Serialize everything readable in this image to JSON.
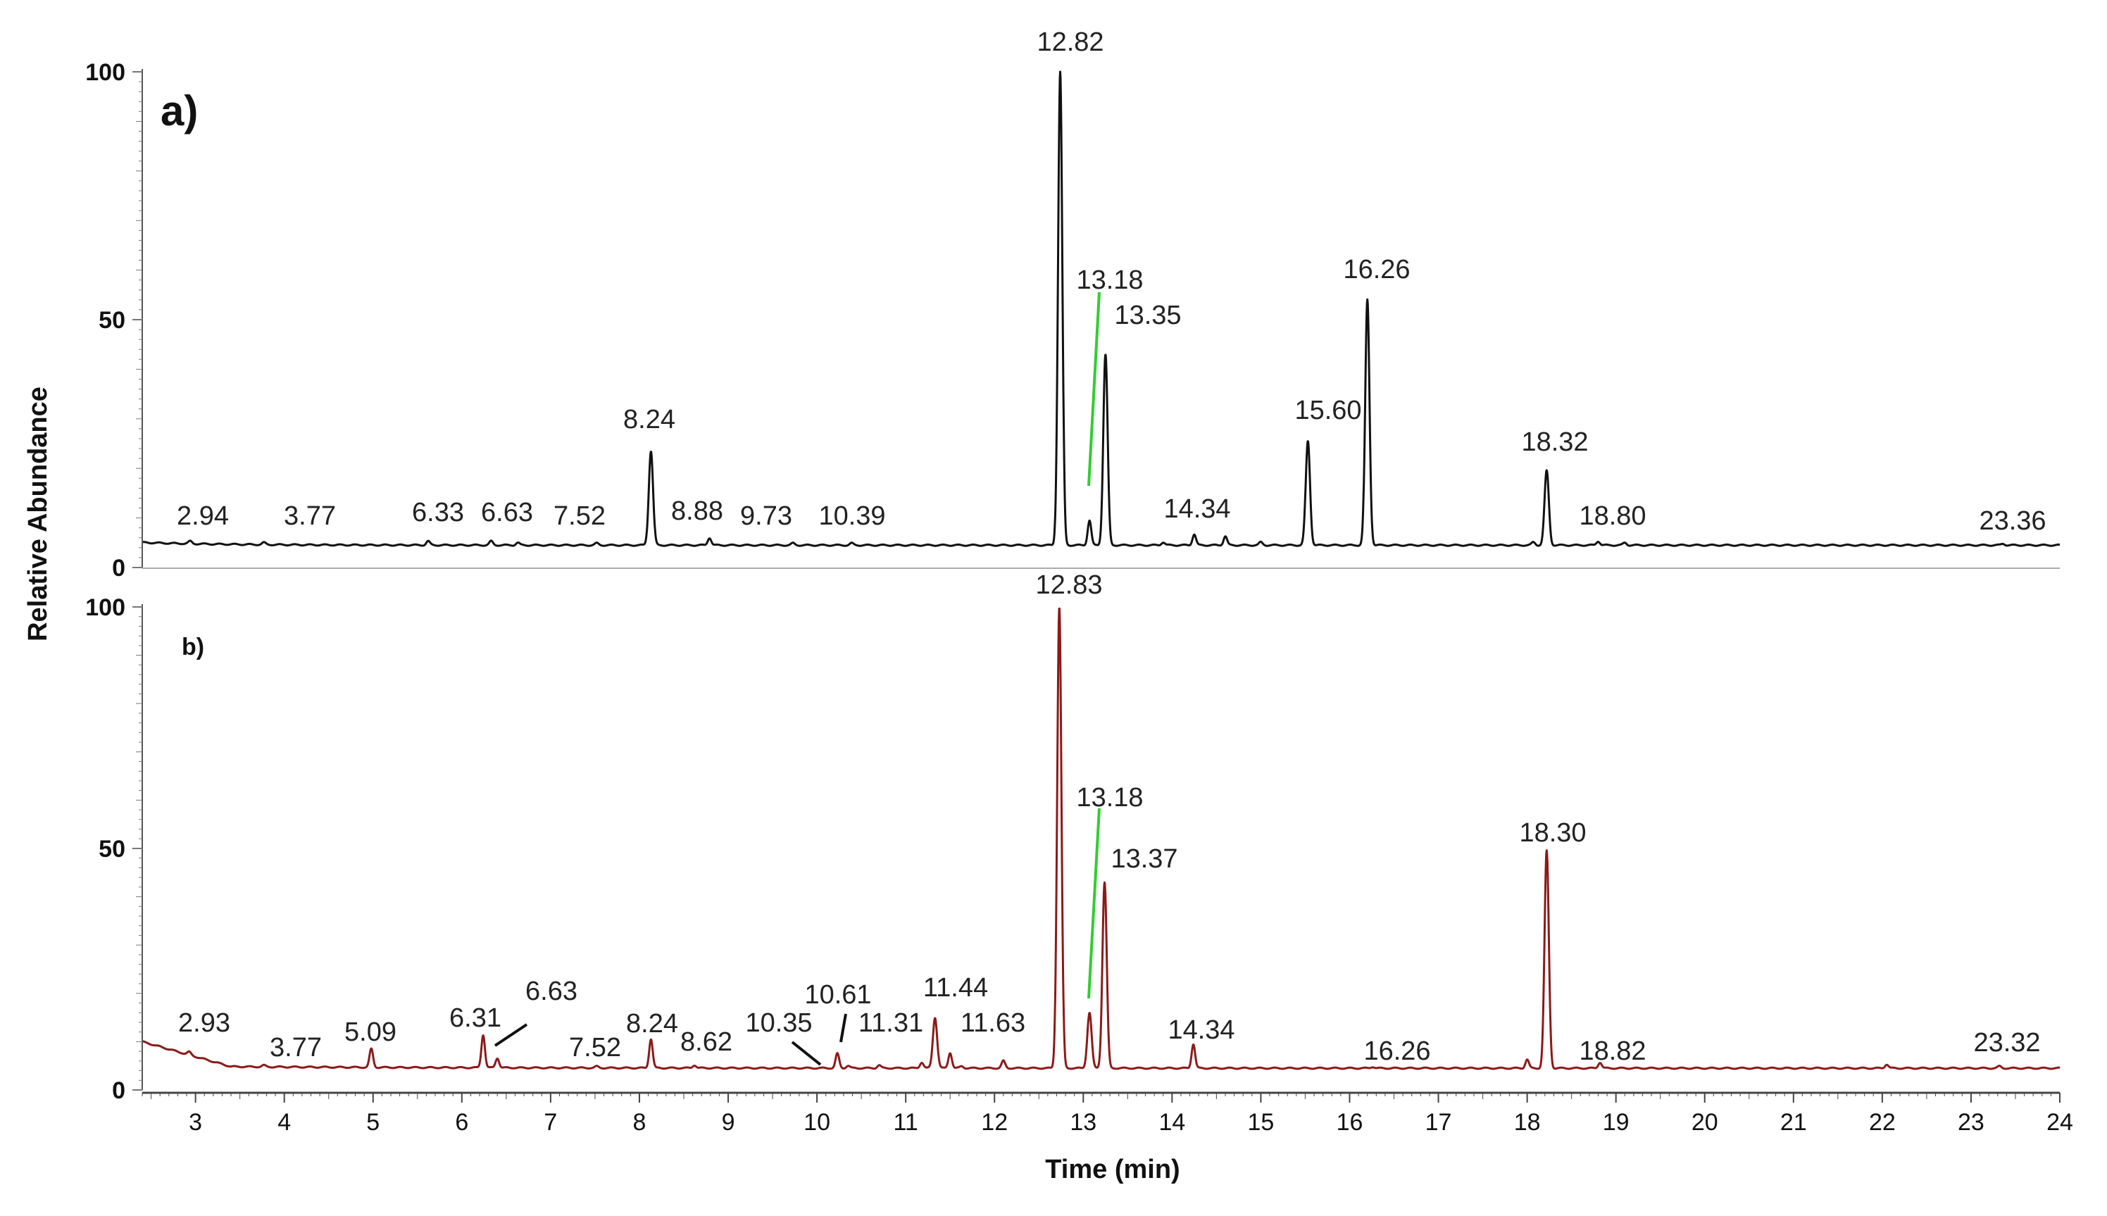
{
  "chart_data": {
    "type": "line",
    "xlabel": "Time (min)",
    "ylabel": "Relative Abundance",
    "xlim": [
      2.4,
      24
    ],
    "ylim": [
      0,
      100
    ],
    "x_ticks": [
      "3",
      "4",
      "5",
      "6",
      "7",
      "8",
      "9",
      "10",
      "11",
      "12",
      "13",
      "14",
      "15",
      "16",
      "17",
      "18",
      "19",
      "20",
      "21",
      "22",
      "23",
      "24"
    ],
    "y_ticks": [
      "0",
      "50",
      "100"
    ],
    "panels": [
      {
        "label": "a)",
        "color": "#111111",
        "baseline": 4.5,
        "peaks": [
          {
            "t": 2.94,
            "h": 0.5,
            "label": "2.94"
          },
          {
            "t": 3.77,
            "h": 0.4,
            "label": "3.77"
          },
          {
            "t": 5.62,
            "h": 0.8
          },
          {
            "t": 6.33,
            "h": 0.8,
            "label": "6.33"
          },
          {
            "t": 6.63,
            "h": 0.5,
            "label": "6.63"
          },
          {
            "t": 7.52,
            "h": 0.4,
            "label": "7.52"
          },
          {
            "t": 8.13,
            "h": 19.0,
            "label": "8.24"
          },
          {
            "t": 8.79,
            "h": 1.5,
            "label": "8.88"
          },
          {
            "t": 9.73,
            "h": 0.4,
            "label": "9.73"
          },
          {
            "t": 10.39,
            "h": 0.4,
            "label": "10.39"
          },
          {
            "t": 12.74,
            "h": 95.5,
            "label": "12.82"
          },
          {
            "t": 13.07,
            "h": 5.0,
            "label": "13.18"
          },
          {
            "t": 13.25,
            "h": 38.5,
            "label": "13.35"
          },
          {
            "t": 13.9,
            "h": 0.6
          },
          {
            "t": 14.25,
            "h": 2.2,
            "label": "14.34"
          },
          {
            "t": 14.6,
            "h": 1.8
          },
          {
            "t": 15.0,
            "h": 0.6
          },
          {
            "t": 15.53,
            "h": 21.0,
            "label": "15.60"
          },
          {
            "t": 16.2,
            "h": 49.5,
            "label": "16.26"
          },
          {
            "t": 18.07,
            "h": 0.6
          },
          {
            "t": 18.22,
            "h": 15.0,
            "label": "18.32"
          },
          {
            "t": 18.8,
            "h": 0.8,
            "label": "18.80"
          },
          {
            "t": 19.1,
            "h": 0.5
          },
          {
            "t": 23.36,
            "h": 0.3,
            "label": "23.36"
          }
        ]
      },
      {
        "label": "b)",
        "color": "#8b1a1a",
        "baseline": 4.5,
        "peaks": [
          {
            "t": 2.93,
            "h": 0.6,
            "label": "2.93"
          },
          {
            "t": 3.77,
            "h": 0.3,
            "label": "3.77"
          },
          {
            "t": 4.98,
            "h": 3.8,
            "label": "5.09"
          },
          {
            "t": 6.24,
            "h": 6.8,
            "label": "6.31"
          },
          {
            "t": 6.4,
            "h": 2.0,
            "label": "6.63"
          },
          {
            "t": 7.52,
            "h": 0.3,
            "label": "7.52"
          },
          {
            "t": 8.13,
            "h": 6.0,
            "label": "8.24"
          },
          {
            "t": 8.62,
            "h": 0.6,
            "label": "8.62"
          },
          {
            "t": 10.35,
            "h": 0.5,
            "label": "10.35"
          },
          {
            "t": 10.23,
            "h": 3.0,
            "label": "10.61"
          },
          {
            "t": 10.7,
            "h": 0.6
          },
          {
            "t": 11.18,
            "h": 1.2,
            "label": "11.31"
          },
          {
            "t": 11.33,
            "h": 10.5,
            "label": "11.44"
          },
          {
            "t": 11.5,
            "h": 3.2
          },
          {
            "t": 11.63,
            "h": 0.4,
            "label": "11.63"
          },
          {
            "t": 12.1,
            "h": 1.5
          },
          {
            "t": 12.73,
            "h": 95.5,
            "label": "12.83"
          },
          {
            "t": 13.07,
            "h": 11.5,
            "label": "13.18"
          },
          {
            "t": 13.24,
            "h": 38.5,
            "label": "13.37"
          },
          {
            "t": 14.24,
            "h": 5.0,
            "label": "14.34"
          },
          {
            "t": 16.26,
            "h": 0.3,
            "label": "16.26"
          },
          {
            "t": 18.0,
            "h": 1.8
          },
          {
            "t": 18.22,
            "h": 45.0,
            "label": "18.30"
          },
          {
            "t": 18.82,
            "h": 1.2,
            "label": "18.82"
          },
          {
            "t": 22.05,
            "h": 0.8
          },
          {
            "t": 23.32,
            "h": 0.4,
            "label": "23.32"
          }
        ]
      }
    ]
  }
}
